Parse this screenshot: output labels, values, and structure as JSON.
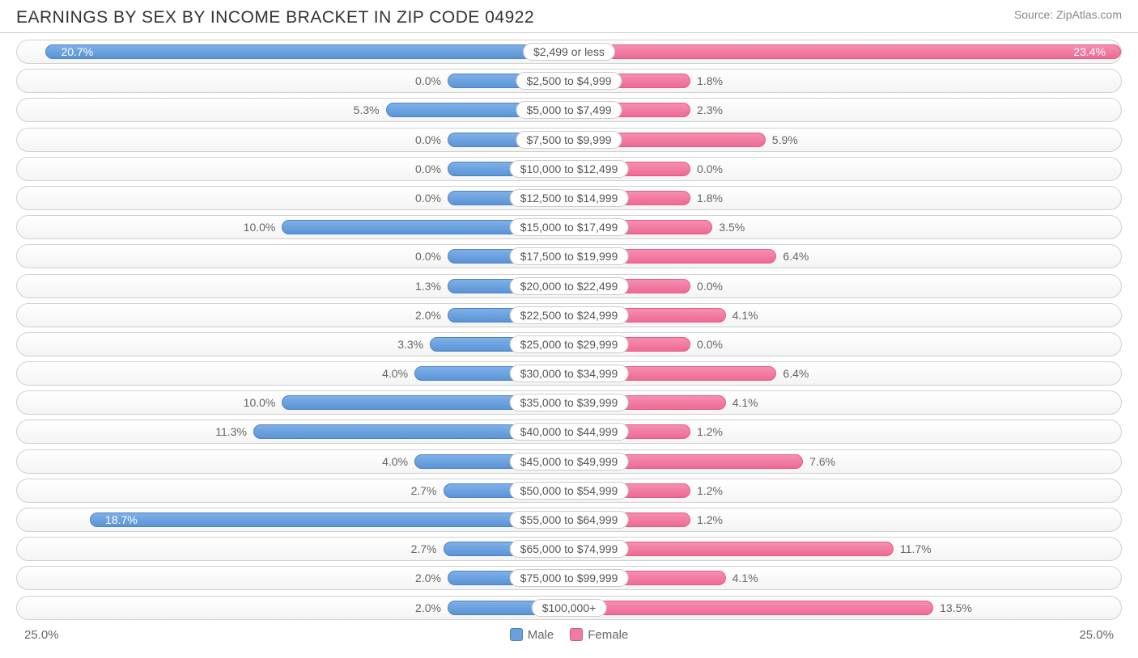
{
  "title": "EARNINGS BY SEX BY INCOME BRACKET IN ZIP CODE 04922",
  "source": "Source: ZipAtlas.com",
  "chart": {
    "type": "diverging-bar",
    "axis_max": 25.0,
    "axis_left_label": "25.0%",
    "axis_right_label": "25.0%",
    "male_color": "#6aa0de",
    "female_color": "#f07ba0",
    "male_bar_gradient_top": "#7fb0e8",
    "male_bar_gradient_bottom": "#5a94d6",
    "female_bar_gradient_top": "#f58fb0",
    "female_bar_gradient_bottom": "#ee6a95",
    "track_border_color": "#d0d0d0",
    "background_color": "#ffffff",
    "label_fontsize": 14,
    "title_fontsize": 21,
    "legend": {
      "male_label": "Male",
      "female_label": "Female"
    },
    "rows": [
      {
        "bracket": "$2,499 or less",
        "male": 20.7,
        "female": 23.4,
        "male_label": "20.7%",
        "female_label": "23.4%",
        "male_inside": true,
        "female_inside": true
      },
      {
        "bracket": "$2,500 to $4,999",
        "male": 0.0,
        "female": 1.8,
        "male_label": "0.0%",
        "female_label": "1.8%",
        "male_inside": false,
        "female_inside": false
      },
      {
        "bracket": "$5,000 to $7,499",
        "male": 5.3,
        "female": 2.3,
        "male_label": "5.3%",
        "female_label": "2.3%",
        "male_inside": false,
        "female_inside": false
      },
      {
        "bracket": "$7,500 to $9,999",
        "male": 0.0,
        "female": 5.9,
        "male_label": "0.0%",
        "female_label": "5.9%",
        "male_inside": false,
        "female_inside": false
      },
      {
        "bracket": "$10,000 to $12,499",
        "male": 0.0,
        "female": 0.0,
        "male_label": "0.0%",
        "female_label": "0.0%",
        "male_inside": false,
        "female_inside": false
      },
      {
        "bracket": "$12,500 to $14,999",
        "male": 0.0,
        "female": 1.8,
        "male_label": "0.0%",
        "female_label": "1.8%",
        "male_inside": false,
        "female_inside": false
      },
      {
        "bracket": "$15,000 to $17,499",
        "male": 10.0,
        "female": 3.5,
        "male_label": "10.0%",
        "female_label": "3.5%",
        "male_inside": false,
        "female_inside": false
      },
      {
        "bracket": "$17,500 to $19,999",
        "male": 0.0,
        "female": 6.4,
        "male_label": "0.0%",
        "female_label": "6.4%",
        "male_inside": false,
        "female_inside": false
      },
      {
        "bracket": "$20,000 to $22,499",
        "male": 1.3,
        "female": 0.0,
        "male_label": "1.3%",
        "female_label": "0.0%",
        "male_inside": false,
        "female_inside": false
      },
      {
        "bracket": "$22,500 to $24,999",
        "male": 2.0,
        "female": 4.1,
        "male_label": "2.0%",
        "female_label": "4.1%",
        "male_inside": false,
        "female_inside": false
      },
      {
        "bracket": "$25,000 to $29,999",
        "male": 3.3,
        "female": 0.0,
        "male_label": "3.3%",
        "female_label": "0.0%",
        "male_inside": false,
        "female_inside": false
      },
      {
        "bracket": "$30,000 to $34,999",
        "male": 4.0,
        "female": 6.4,
        "male_label": "4.0%",
        "female_label": "6.4%",
        "male_inside": false,
        "female_inside": false
      },
      {
        "bracket": "$35,000 to $39,999",
        "male": 10.0,
        "female": 4.1,
        "male_label": "10.0%",
        "female_label": "4.1%",
        "male_inside": false,
        "female_inside": false
      },
      {
        "bracket": "$40,000 to $44,999",
        "male": 11.3,
        "female": 1.2,
        "male_label": "11.3%",
        "female_label": "1.2%",
        "male_inside": false,
        "female_inside": false
      },
      {
        "bracket": "$45,000 to $49,999",
        "male": 4.0,
        "female": 7.6,
        "male_label": "4.0%",
        "female_label": "7.6%",
        "male_inside": false,
        "female_inside": false
      },
      {
        "bracket": "$50,000 to $54,999",
        "male": 2.7,
        "female": 1.2,
        "male_label": "2.7%",
        "female_label": "1.2%",
        "male_inside": false,
        "female_inside": false
      },
      {
        "bracket": "$55,000 to $64,999",
        "male": 18.7,
        "female": 1.2,
        "male_label": "18.7%",
        "female_label": "1.2%",
        "male_inside": true,
        "female_inside": false
      },
      {
        "bracket": "$65,000 to $74,999",
        "male": 2.7,
        "female": 11.7,
        "male_label": "2.7%",
        "female_label": "11.7%",
        "male_inside": false,
        "female_inside": false
      },
      {
        "bracket": "$75,000 to $99,999",
        "male": 2.0,
        "female": 4.1,
        "male_label": "2.0%",
        "female_label": "4.1%",
        "male_inside": false,
        "female_inside": false
      },
      {
        "bracket": "$100,000+",
        "male": 2.0,
        "female": 13.5,
        "male_label": "2.0%",
        "female_label": "13.5%",
        "male_inside": false,
        "female_inside": false
      }
    ]
  }
}
